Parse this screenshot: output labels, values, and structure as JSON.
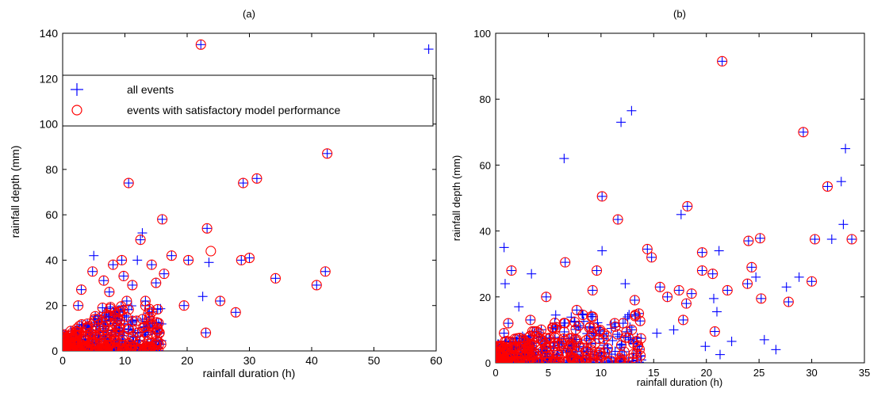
{
  "chart_data": [
    {
      "type": "scatter",
      "title": "(a)",
      "xlabel": "rainfall duration (h)",
      "ylabel": "rainfall depth (mm)",
      "xlim": [
        0,
        60
      ],
      "ylim": [
        0,
        140
      ],
      "xticks": [
        "0",
        "10",
        "20",
        "30",
        "40",
        "50",
        "60"
      ],
      "yticks": [
        "0",
        "20",
        "40",
        "60",
        "80",
        "100",
        "120",
        "140"
      ],
      "legend": {
        "placement": "upper-left",
        "entries": [
          "all events",
          "events with satisfactory model performance"
        ]
      },
      "colors": {
        "all_events": "#0000ff",
        "satisfactory": "#ff0000"
      },
      "series": [
        {
          "name": "all events",
          "marker": "plus",
          "points": [
            [
              22.2,
              135
            ],
            [
              58.8,
              133
            ],
            [
              42.5,
              87
            ],
            [
              31.2,
              76
            ],
            [
              29,
              74
            ],
            [
              10.6,
              74
            ],
            [
              16,
              58
            ],
            [
              23.2,
              54
            ],
            [
              12.8,
              52
            ],
            [
              12.5,
              49
            ],
            [
              5,
              42
            ],
            [
              8.1,
              38
            ],
            [
              4.8,
              35
            ],
            [
              17.5,
              42
            ],
            [
              9.5,
              40
            ],
            [
              14.3,
              38
            ],
            [
              23.5,
              39
            ],
            [
              16.3,
              34
            ],
            [
              20.2,
              40
            ],
            [
              22.5,
              24
            ],
            [
              34.2,
              32
            ],
            [
              42.2,
              35
            ],
            [
              40.8,
              29
            ],
            [
              28.7,
              40
            ],
            [
              30,
              41
            ],
            [
              27.8,
              17
            ],
            [
              23,
              8
            ],
            [
              25.3,
              22
            ],
            [
              19.5,
              20
            ],
            [
              13.3,
              22
            ],
            [
              15,
              30
            ],
            [
              11.2,
              29
            ],
            [
              10.3,
              22
            ],
            [
              3,
              27
            ],
            [
              7.5,
              26
            ],
            [
              2.5,
              20
            ],
            [
              12,
              40
            ],
            [
              9.8,
              33
            ],
            [
              6.6,
              31
            ],
            [
              7.4,
              15
            ],
            [
              6.4,
              19
            ]
          ]
        },
        {
          "name": "events with satisfactory model performance",
          "marker": "circle",
          "points": [
            [
              22.2,
              135
            ],
            [
              42.5,
              87
            ],
            [
              31.2,
              76
            ],
            [
              29,
              74
            ],
            [
              10.6,
              74
            ],
            [
              16,
              58
            ],
            [
              23.2,
              54
            ],
            [
              12.5,
              49
            ],
            [
              8.1,
              38
            ],
            [
              4.8,
              35
            ],
            [
              17.5,
              42
            ],
            [
              9.5,
              40
            ],
            [
              14.3,
              38
            ],
            [
              23.8,
              44
            ],
            [
              16.3,
              34
            ],
            [
              20.2,
              40
            ],
            [
              34.2,
              32
            ],
            [
              42.2,
              35
            ],
            [
              40.8,
              29
            ],
            [
              28.7,
              40
            ],
            [
              30,
              41
            ],
            [
              27.8,
              17
            ],
            [
              23,
              8
            ],
            [
              25.3,
              22
            ],
            [
              19.5,
              20
            ],
            [
              13.3,
              22
            ],
            [
              15,
              30
            ],
            [
              11.2,
              29
            ],
            [
              10.3,
              22
            ],
            [
              3,
              27
            ],
            [
              7.5,
              26
            ],
            [
              2.5,
              20
            ],
            [
              9.8,
              33
            ],
            [
              6.6,
              31
            ],
            [
              7.4,
              15
            ],
            [
              6.4,
              19
            ]
          ]
        }
      ]
    },
    {
      "type": "scatter",
      "title": "(b)",
      "xlabel": "rainfall duration (h)",
      "ylabel": "rainfall depth (mm)",
      "xlim": [
        0,
        35
      ],
      "ylim": [
        0,
        100
      ],
      "xticks": [
        "0",
        "5",
        "10",
        "15",
        "20",
        "25",
        "30",
        "35"
      ],
      "yticks": [
        "0",
        "20",
        "40",
        "60",
        "80",
        "100"
      ],
      "colors": {
        "all_events": "#0000ff",
        "satisfactory": "#ff0000"
      },
      "series": [
        {
          "name": "all events",
          "marker": "plus",
          "points": [
            [
              21.5,
              91.5
            ],
            [
              12.9,
              76.5
            ],
            [
              11.9,
              73
            ],
            [
              6.5,
              62
            ],
            [
              29.2,
              70
            ],
            [
              33.2,
              65
            ],
            [
              32.8,
              55
            ],
            [
              31.5,
              53.5
            ],
            [
              10.1,
              50.5
            ],
            [
              18.2,
              47.5
            ],
            [
              17.6,
              45
            ],
            [
              11.6,
              43.5
            ],
            [
              33,
              42
            ],
            [
              30.3,
              37.5
            ],
            [
              31.9,
              37.5
            ],
            [
              33.8,
              37.5
            ],
            [
              25.1,
              37.8
            ],
            [
              24,
              37
            ],
            [
              21.2,
              34
            ],
            [
              10.1,
              34
            ],
            [
              0.8,
              35
            ],
            [
              14.4,
              34.5
            ],
            [
              12.3,
              24
            ],
            [
              14.8,
              32
            ],
            [
              3.4,
              27
            ],
            [
              1.5,
              28
            ],
            [
              0.9,
              24
            ],
            [
              6.6,
              30.5
            ],
            [
              9.6,
              28
            ],
            [
              19.6,
              33.5
            ],
            [
              20.6,
              27
            ],
            [
              24.3,
              29
            ],
            [
              22,
              22
            ],
            [
              28.8,
              26
            ],
            [
              30,
              24.7
            ],
            [
              27.6,
              23
            ],
            [
              17.4,
              22
            ],
            [
              13.2,
              19
            ],
            [
              18.6,
              21
            ],
            [
              20.7,
              19.5
            ],
            [
              24.7,
              26
            ],
            [
              25.2,
              19.5
            ],
            [
              27.8,
              18.5
            ],
            [
              15.6,
              23
            ],
            [
              19.6,
              28
            ],
            [
              23.9,
              24
            ],
            [
              16.3,
              20
            ],
            [
              19.9,
              5
            ],
            [
              21.3,
              2.5
            ],
            [
              26.6,
              4
            ],
            [
              25.5,
              7
            ],
            [
              22.4,
              6.5
            ],
            [
              21,
              15.5
            ],
            [
              15.3,
              9
            ],
            [
              12.1,
              12
            ],
            [
              12.8,
              7
            ],
            [
              17.8,
              13
            ],
            [
              20.8,
              9.5
            ],
            [
              18.1,
              18
            ],
            [
              16.9,
              10
            ],
            [
              7.7,
              16
            ],
            [
              5.7,
              14.5
            ],
            [
              4.8,
              20
            ],
            [
              3.3,
              13
            ],
            [
              2.2,
              17
            ],
            [
              9.2,
              22
            ],
            [
              1.2,
              12
            ],
            [
              0.8,
              9
            ]
          ]
        },
        {
          "name": "events with satisfactory model performance",
          "marker": "circle",
          "points": [
            [
              21.5,
              91.5
            ],
            [
              29.2,
              70
            ],
            [
              31.5,
              53.5
            ],
            [
              10.1,
              50.5
            ],
            [
              18.2,
              47.5
            ],
            [
              11.6,
              43.5
            ],
            [
              30.3,
              37.5
            ],
            [
              33.8,
              37.5
            ],
            [
              25.1,
              37.8
            ],
            [
              24,
              37
            ],
            [
              14.4,
              34.5
            ],
            [
              14.8,
              32
            ],
            [
              1.5,
              28
            ],
            [
              6.6,
              30.5
            ],
            [
              9.6,
              28
            ],
            [
              19.6,
              33.5
            ],
            [
              20.6,
              27
            ],
            [
              24.3,
              29
            ],
            [
              22,
              22
            ],
            [
              30,
              24.7
            ],
            [
              27.8,
              18.5
            ],
            [
              17.4,
              22
            ],
            [
              13.2,
              19
            ],
            [
              18.6,
              21
            ],
            [
              25.2,
              19.5
            ],
            [
              15.6,
              23
            ],
            [
              19.6,
              28
            ],
            [
              23.9,
              24
            ],
            [
              16.3,
              20
            ],
            [
              20.8,
              9.5
            ],
            [
              18.1,
              18
            ],
            [
              7.7,
              16
            ],
            [
              4.8,
              20
            ],
            [
              3.3,
              13
            ],
            [
              9.2,
              22
            ],
            [
              12.1,
              12
            ],
            [
              17.8,
              13
            ],
            [
              1.2,
              12
            ],
            [
              0.8,
              9
            ]
          ]
        }
      ]
    }
  ]
}
